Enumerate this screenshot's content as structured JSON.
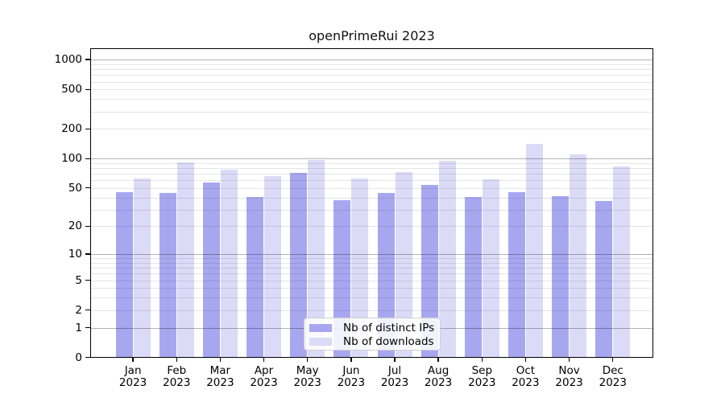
{
  "chart_data": {
    "type": "bar",
    "title": "openPrimeRui 2023",
    "year": "2023",
    "months": [
      "Jan",
      "Feb",
      "Mar",
      "Apr",
      "May",
      "Jun",
      "Jul",
      "Aug",
      "Sep",
      "Oct",
      "Nov",
      "Dec"
    ],
    "categories": [
      "Jan 2023",
      "Feb 2023",
      "Mar 2023",
      "Apr 2023",
      "May 2023",
      "Jun 2023",
      "Jul 2023",
      "Aug 2023",
      "Sep 2023",
      "Oct 2023",
      "Nov 2023",
      "Dec 2023"
    ],
    "series": [
      {
        "key": "distinct-ips",
        "name": "Nb of distinct IPs",
        "color": "#a7a7f0",
        "values": [
          45,
          44,
          56,
          40,
          71,
          37,
          44,
          53,
          40,
          45,
          41,
          36
        ]
      },
      {
        "key": "downloads",
        "name": "Nb of downloads",
        "color": "#dbdbf8",
        "values": [
          62,
          90,
          76,
          66,
          96,
          62,
          72,
          93,
          61,
          140,
          108,
          82
        ]
      }
    ],
    "y_scale": "log10(1+y)",
    "y_ticks": [
      0,
      1,
      2,
      5,
      10,
      20,
      50,
      100,
      200,
      500,
      1000
    ],
    "major_gridlines": [
      1,
      10,
      100,
      1000
    ],
    "minor_gridline_subs": [
      2,
      3,
      4,
      5,
      6,
      7,
      8,
      9
    ],
    "ylim": [
      0,
      1280
    ],
    "grid": true,
    "legend_position": "bottom-center"
  },
  "colors": {
    "bar_distinct_ips": "#a7a7f0",
    "bar_downloads": "#dbdbf8",
    "major_grid": "#b5b5b5",
    "minor_grid": "#e6e6e6",
    "spine": "#000000",
    "text": "#111111",
    "legend_border": "#cfcfcf"
  }
}
